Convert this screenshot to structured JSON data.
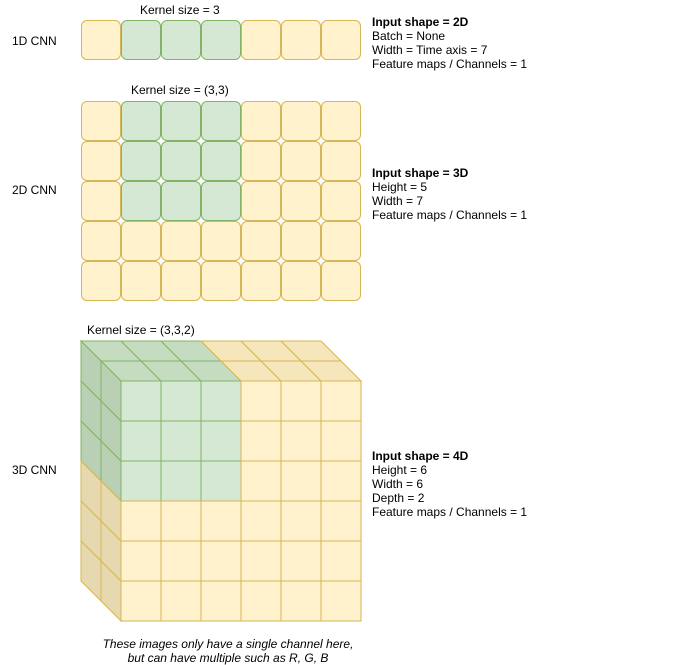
{
  "rows": {
    "cnn1d": {
      "label": "1D CNN",
      "kernel_label": "Kernel size = 3",
      "grid": {
        "cols": 7,
        "rows": 1,
        "kernel_cols": [
          1,
          3
        ]
      },
      "info": {
        "head": "Input shape = 2D",
        "lines": [
          "Batch = None",
          "Width = Time axis = 7",
          "Feature maps / Channels = 1"
        ]
      }
    },
    "cnn2d": {
      "label": "2D CNN",
      "kernel_label": "Kernel size = (3,3)",
      "grid": {
        "cols": 7,
        "rows": 5,
        "kernel_cols": [
          1,
          3
        ],
        "kernel_rows": [
          0,
          2
        ]
      },
      "info": {
        "head": "Input shape = 3D",
        "lines": [
          "Height = 5",
          "Width = 7",
          "Feature maps / Channels = 1"
        ]
      }
    },
    "cnn3d": {
      "label": "3D CNN",
      "kernel_label": "Kernel size = (3,3,2)",
      "info": {
        "head": "Input shape = 4D",
        "lines": [
          "Height = 6",
          "Width = 6",
          "Depth = 2",
          "Feature maps / Channels = 1"
        ]
      }
    }
  },
  "caption": {
    "line1": "These images only have a single channel here,",
    "line2": "but can have multiple such as R, G, B"
  },
  "colors": {
    "cell_fill": "#fff2cc",
    "cell_stroke": "#d6b656",
    "kernel_fill": "#d5e8d4",
    "kernel_stroke": "#82b366",
    "side_fill": "#e6d9b0",
    "top_fill": "#f5e6bb",
    "kernel_side_fill": "#b9d0b5",
    "kernel_top_fill": "#c5dcc0"
  }
}
